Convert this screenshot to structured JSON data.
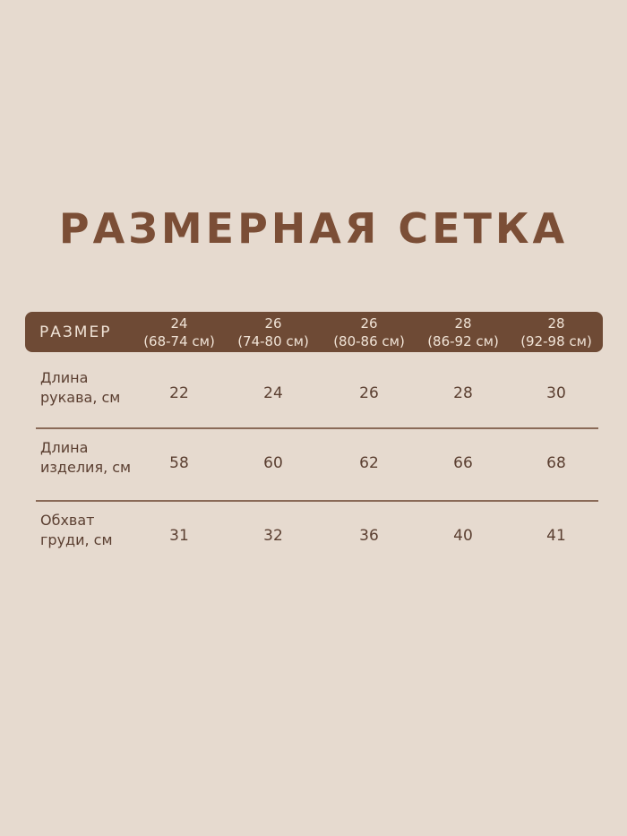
{
  "title": "РАЗМЕРНАЯ СЕТКА",
  "header": {
    "label": "РАЗМЕР",
    "sizes": [
      {
        "size": "24",
        "range": "(68-74 см)"
      },
      {
        "size": "26",
        "range": "(74-80 см)"
      },
      {
        "size": "26",
        "range": "(80-86 см)"
      },
      {
        "size": "28",
        "range": "(86-92 см)"
      },
      {
        "size": "28",
        "range": "(92-98 см)"
      }
    ]
  },
  "rows": [
    {
      "line1": "Длина",
      "line2": "рукава, см",
      "values": [
        "22",
        "24",
        "26",
        "28",
        "30"
      ]
    },
    {
      "line1": "Длина",
      "line2": "изделия, см",
      "values": [
        "58",
        "60",
        "62",
        "66",
        "68"
      ]
    },
    {
      "line1": "Обхват",
      "line2": "груди, см",
      "values": [
        "31",
        "32",
        "36",
        "40",
        "41"
      ]
    }
  ],
  "colors": {
    "background": "#e6dacf",
    "header": "#6e4a35",
    "title": "#7b4e36",
    "text": "#5b3f31"
  }
}
